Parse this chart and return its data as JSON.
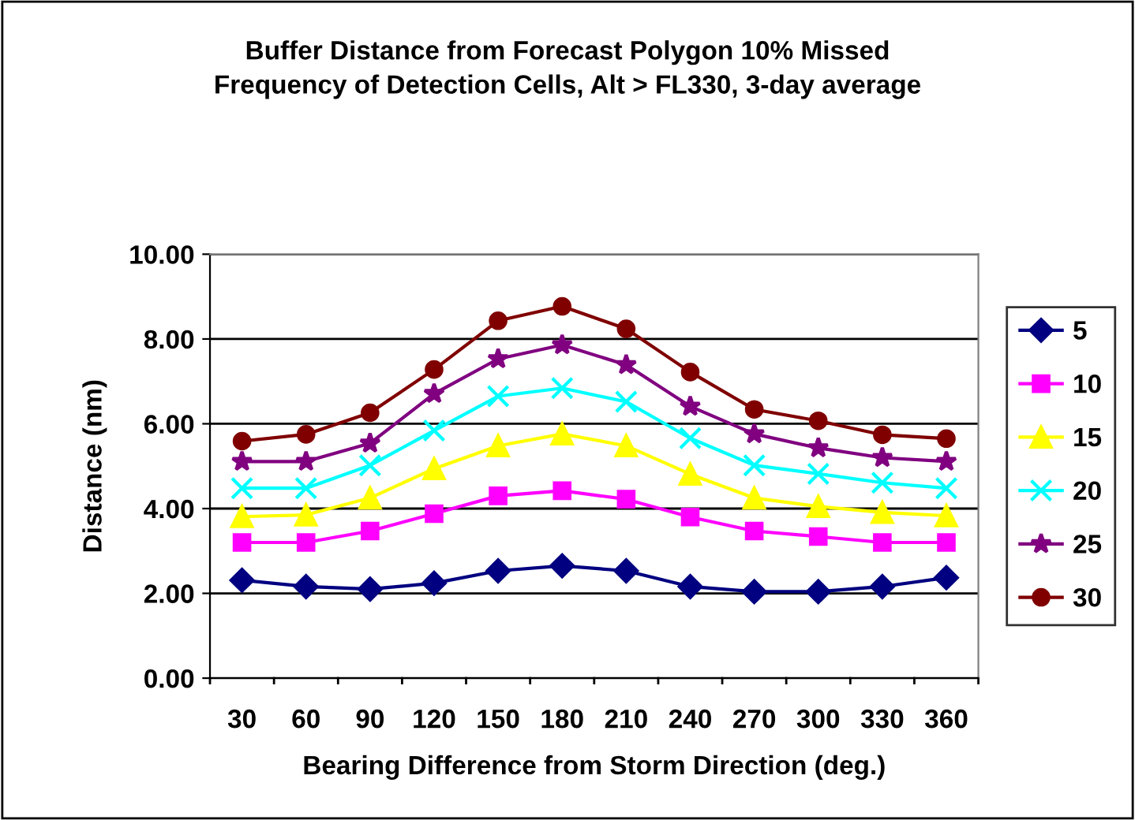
{
  "chart_data": {
    "type": "line",
    "title": "Buffer Distance from Forecast Polygon 10% Missed\nFrequency of Detection Cells, Alt > FL330, 3-day average",
    "xlabel": "Bearing Difference from Storm Direction (deg.)",
    "ylabel": "Distance (nm)",
    "categories": [
      "30",
      "60",
      "90",
      "120",
      "150",
      "180",
      "210",
      "240",
      "270",
      "300",
      "330",
      "360"
    ],
    "series": [
      {
        "name": "5",
        "color": "#000080",
        "marker": "diamond",
        "values": [
          2.31,
          2.16,
          2.1,
          2.24,
          2.53,
          2.65,
          2.53,
          2.16,
          2.04,
          2.04,
          2.16,
          2.37
        ]
      },
      {
        "name": "10",
        "color": "#ff00ff",
        "marker": "square",
        "values": [
          3.2,
          3.2,
          3.47,
          3.88,
          4.3,
          4.42,
          4.22,
          3.8,
          3.47,
          3.34,
          3.2,
          3.2
        ]
      },
      {
        "name": "15",
        "color": "#ffff00",
        "marker": "triangle",
        "values": [
          3.81,
          3.85,
          4.25,
          4.94,
          5.48,
          5.76,
          5.48,
          4.81,
          4.25,
          4.05,
          3.91,
          3.83
        ]
      },
      {
        "name": "20",
        "color": "#00ffff",
        "marker": "cross",
        "values": [
          4.48,
          4.48,
          5.02,
          5.84,
          6.65,
          6.84,
          6.52,
          5.66,
          5.02,
          4.82,
          4.61,
          4.48
        ]
      },
      {
        "name": "25",
        "color": "#800080",
        "marker": "star",
        "values": [
          5.11,
          5.11,
          5.54,
          6.71,
          7.53,
          7.86,
          7.39,
          6.41,
          5.76,
          5.43,
          5.2,
          5.11
        ]
      },
      {
        "name": "30",
        "color": "#800000",
        "marker": "circle",
        "values": [
          5.59,
          5.75,
          6.26,
          7.28,
          8.43,
          8.77,
          8.24,
          7.22,
          6.34,
          6.07,
          5.74,
          5.65
        ]
      }
    ],
    "ylim": [
      0,
      10
    ],
    "yticks": [
      {
        "value": 0,
        "label": "0.00"
      },
      {
        "value": 2,
        "label": "2.00"
      },
      {
        "value": 4,
        "label": "4.00"
      },
      {
        "value": 6,
        "label": "6.00"
      },
      {
        "value": 8,
        "label": "8.00"
      },
      {
        "value": 10,
        "label": "10.00"
      }
    ],
    "grid": "y",
    "legend": "right",
    "line_style": "solid"
  }
}
